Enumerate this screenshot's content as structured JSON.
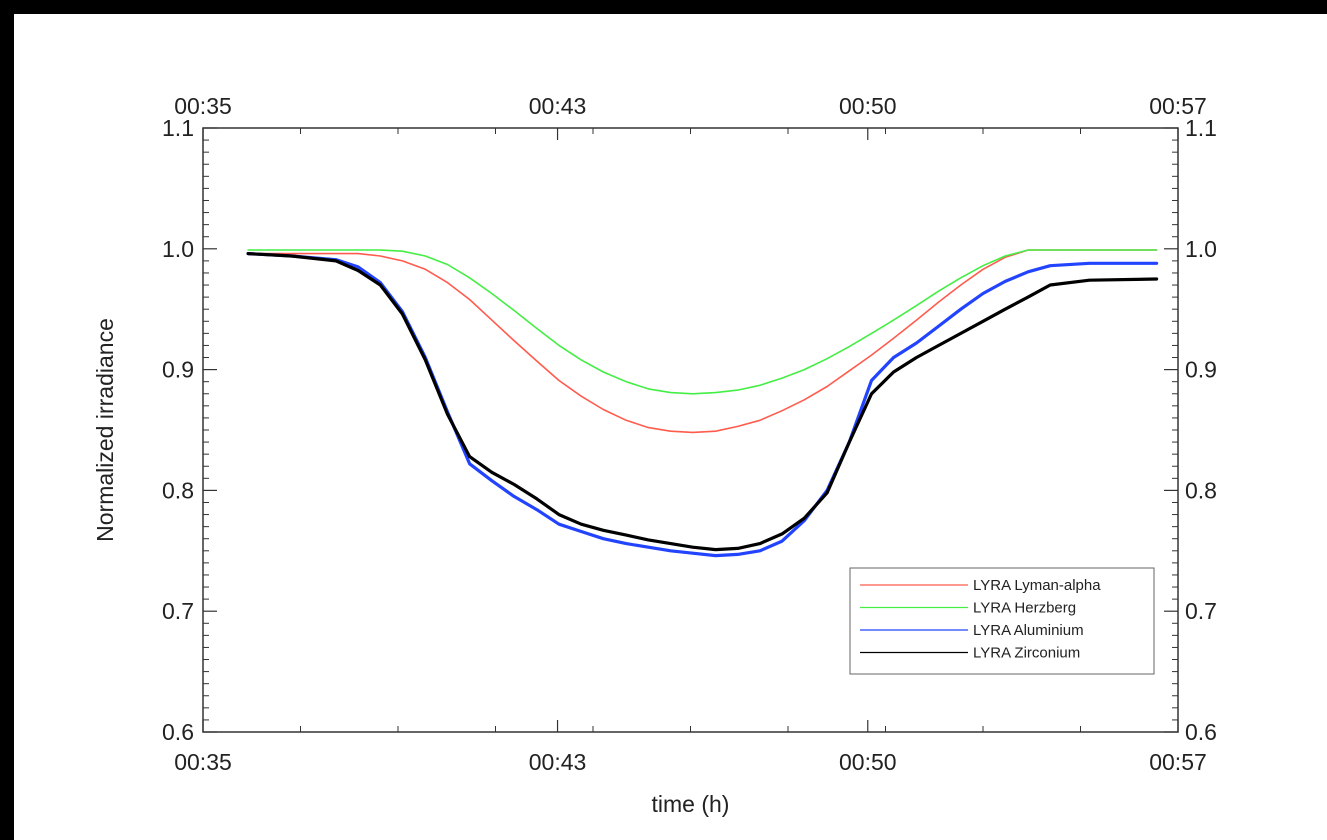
{
  "chart_data": {
    "type": "line",
    "title": "",
    "xlabel": "time (h)",
    "ylabel": "Normalized irradiance",
    "xlim": [
      "00:35",
      "00:57"
    ],
    "ylim": [
      0.6,
      1.1
    ],
    "x_ticks": [
      "00:35",
      "00:43",
      "00:50",
      "00:57"
    ],
    "x_top_ticks": [
      "00:35",
      "00:43",
      "00:50",
      "00:57"
    ],
    "y_ticks": [
      "0.6",
      "0.7",
      "0.8",
      "0.9",
      "1.0",
      "1.1"
    ],
    "y_right_ticks": [
      "0.6",
      "0.7",
      "0.8",
      "0.9",
      "1.0",
      "1.1"
    ],
    "grid": false,
    "legend_position": "bottom-right",
    "series": [
      {
        "name": "LYRA Lyman-alpha",
        "color": "#ff5c4d",
        "x": [
          "00:36:01",
          "00:38:30",
          "00:39:00",
          "00:39:30",
          "00:40:01",
          "00:40:31",
          "00:41:01",
          "00:41:31",
          "00:42:01",
          "00:42:32",
          "00:43:02",
          "00:43:32",
          "00:44:02",
          "00:44:33",
          "00:45:03",
          "00:45:33",
          "00:46:03",
          "00:46:34",
          "00:47:04",
          "00:47:34",
          "00:48:04",
          "00:48:34",
          "00:49:05",
          "00:49:35",
          "00:50:05",
          "00:50:35",
          "00:51:06",
          "00:51:36",
          "00:52:06",
          "00:52:36",
          "00:53:06",
          "00:53:37",
          "00:56:31"
        ],
        "values": [
          0.996,
          0.996,
          0.994,
          0.99,
          0.983,
          0.972,
          0.958,
          0.941,
          0.924,
          0.907,
          0.891,
          0.878,
          0.867,
          0.858,
          0.852,
          0.849,
          0.848,
          0.849,
          0.853,
          0.858,
          0.866,
          0.875,
          0.886,
          0.899,
          0.912,
          0.926,
          0.941,
          0.956,
          0.97,
          0.983,
          0.993,
          0.999,
          0.999
        ]
      },
      {
        "name": "LYRA Herzberg",
        "color": "#44ee44",
        "x": [
          "00:36:01",
          "00:39:00",
          "00:39:30",
          "00:40:01",
          "00:40:31",
          "00:41:01",
          "00:41:31",
          "00:42:01",
          "00:42:32",
          "00:43:02",
          "00:43:32",
          "00:44:02",
          "00:44:33",
          "00:45:03",
          "00:45:33",
          "00:46:03",
          "00:46:34",
          "00:47:04",
          "00:47:34",
          "00:48:04",
          "00:48:34",
          "00:49:05",
          "00:49:35",
          "00:50:05",
          "00:50:35",
          "00:51:06",
          "00:51:36",
          "00:52:06",
          "00:52:36",
          "00:53:06",
          "00:53:37",
          "00:56:31"
        ],
        "values": [
          0.999,
          0.999,
          0.998,
          0.994,
          0.987,
          0.976,
          0.963,
          0.949,
          0.934,
          0.92,
          0.908,
          0.898,
          0.89,
          0.884,
          0.881,
          0.88,
          0.881,
          0.883,
          0.887,
          0.893,
          0.9,
          0.909,
          0.919,
          0.93,
          0.941,
          0.953,
          0.965,
          0.976,
          0.986,
          0.994,
          0.999,
          0.999
        ]
      },
      {
        "name": "LYRA Aluminium",
        "color": "#2244ff",
        "x": [
          "00:36:01",
          "00:37:00",
          "00:38:00",
          "00:38:30",
          "00:39:00",
          "00:39:30",
          "00:40:01",
          "00:40:31",
          "00:41:01",
          "00:41:31",
          "00:42:01",
          "00:42:32",
          "00:43:02",
          "00:43:32",
          "00:44:02",
          "00:44:33",
          "00:45:03",
          "00:45:33",
          "00:46:03",
          "00:46:34",
          "00:47:04",
          "00:47:34",
          "00:48:04",
          "00:48:34",
          "00:49:05",
          "00:49:35",
          "00:50:05",
          "00:50:35",
          "00:51:06",
          "00:51:36",
          "00:52:06",
          "00:52:36",
          "00:53:06",
          "00:53:37",
          "00:54:07",
          "00:55:00",
          "00:56:31"
        ],
        "values": [
          0.996,
          0.994,
          0.991,
          0.985,
          0.972,
          0.948,
          0.91,
          0.865,
          0.822,
          0.808,
          0.795,
          0.784,
          0.772,
          0.766,
          0.76,
          0.756,
          0.753,
          0.75,
          0.748,
          0.746,
          0.747,
          0.75,
          0.758,
          0.775,
          0.8,
          0.84,
          0.891,
          0.91,
          0.922,
          0.936,
          0.95,
          0.963,
          0.973,
          0.981,
          0.986,
          0.988,
          0.988
        ]
      },
      {
        "name": "LYRA Zirconium",
        "color": "#000000",
        "x": [
          "00:36:01",
          "00:37:00",
          "00:38:00",
          "00:38:30",
          "00:39:00",
          "00:39:30",
          "00:40:01",
          "00:40:31",
          "00:41:01",
          "00:41:31",
          "00:42:01",
          "00:42:32",
          "00:43:02",
          "00:43:32",
          "00:44:02",
          "00:44:33",
          "00:45:03",
          "00:45:33",
          "00:46:03",
          "00:46:34",
          "00:47:04",
          "00:47:34",
          "00:48:04",
          "00:48:34",
          "00:49:05",
          "00:49:35",
          "00:50:05",
          "00:50:35",
          "00:51:06",
          "00:51:36",
          "00:52:06",
          "00:52:36",
          "00:53:06",
          "00:53:37",
          "00:54:07",
          "00:55:00",
          "00:56:31"
        ],
        "values": [
          0.996,
          0.994,
          0.99,
          0.982,
          0.97,
          0.946,
          0.908,
          0.863,
          0.828,
          0.815,
          0.805,
          0.793,
          0.78,
          0.772,
          0.767,
          0.763,
          0.759,
          0.756,
          0.753,
          0.751,
          0.752,
          0.756,
          0.764,
          0.777,
          0.798,
          0.84,
          0.88,
          0.898,
          0.91,
          0.92,
          0.93,
          0.94,
          0.95,
          0.96,
          0.97,
          0.974,
          0.975
        ]
      }
    ]
  }
}
